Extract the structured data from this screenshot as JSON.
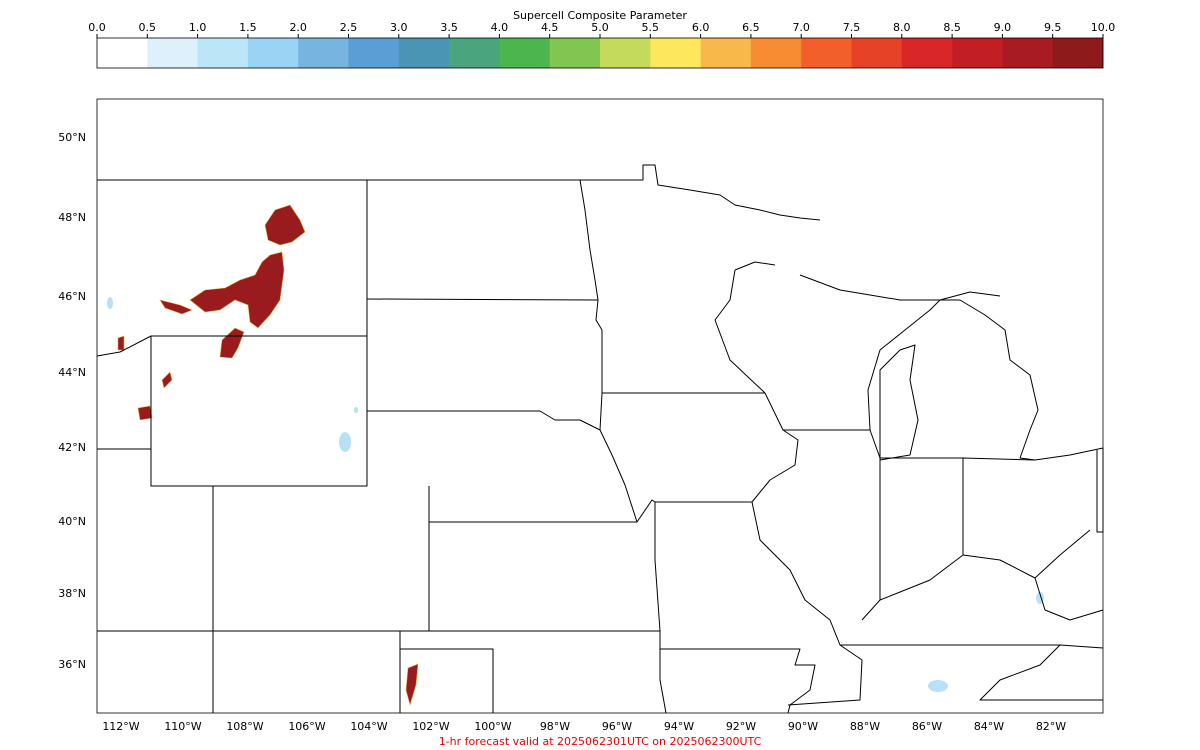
{
  "colorbar": {
    "title": "Supercell Composite Parameter",
    "ticks": [
      "0.0",
      "0.5",
      "1.0",
      "1.5",
      "2.0",
      "2.5",
      "3.0",
      "3.5",
      "4.0",
      "4.5",
      "5.0",
      "5.5",
      "6.0",
      "6.5",
      "7.0",
      "7.5",
      "8.0",
      "8.5",
      "9.0",
      "9.5",
      "10.0"
    ],
    "colors": [
      "#ffffff",
      "#ddf0fc",
      "#bde5f8",
      "#9ad3f3",
      "#77b4df",
      "#5b9ed5",
      "#4a95b3",
      "#4aa57f",
      "#4cb54e",
      "#80c650",
      "#c3da5a",
      "#fde75d",
      "#f9b84a",
      "#f78c33",
      "#f25f2a",
      "#e54228",
      "#d92628",
      "#c11f24",
      "#a81b22",
      "#8e1a1c"
    ]
  },
  "map": {
    "lat_labels": [
      "50°N",
      "48°N",
      "46°N",
      "44°N",
      "42°N",
      "40°N",
      "38°N",
      "36°N"
    ],
    "lon_labels": [
      "112°W",
      "110°W",
      "108°W",
      "106°W",
      "104°W",
      "102°W",
      "100°W",
      "98°W",
      "96°W",
      "94°W",
      "92°W",
      "90°W",
      "88°W",
      "86°W",
      "84°W",
      "82°W"
    ]
  },
  "footer": "1-hr forecast valid at 2025062301UTC on 2025062300UTC"
}
